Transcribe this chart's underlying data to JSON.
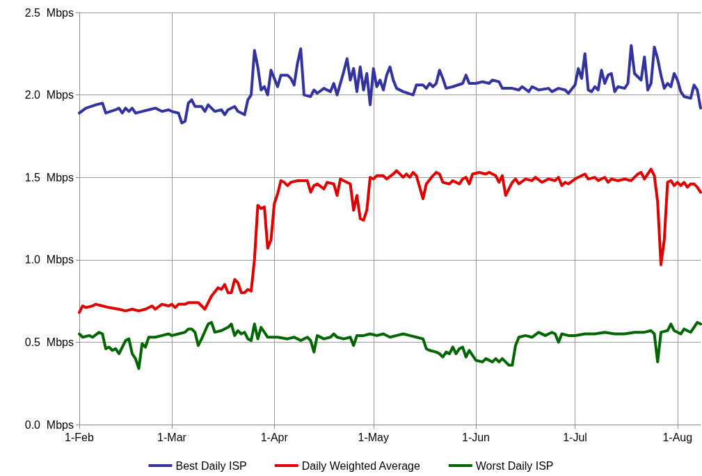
{
  "chart_data": {
    "type": "line",
    "legend": "bottom",
    "grid": true,
    "line_style": "solid",
    "marker": "none",
    "xlim": [
      "--02-01",
      "--08-08"
    ],
    "xticks": [
      {
        "value": "--02-01",
        "label": "1-Feb"
      },
      {
        "value": "--03-01",
        "label": "1-Mar"
      },
      {
        "value": "--04-01",
        "label": "1-Apr"
      },
      {
        "value": "--05-01",
        "label": "1-May"
      },
      {
        "value": "--06-01",
        "label": "1-Jun"
      },
      {
        "value": "--07-01",
        "label": "1-Jul"
      },
      {
        "value": "--08-01",
        "label": "1-Aug"
      }
    ],
    "ylim": [
      0,
      2.5
    ],
    "yticks": [
      {
        "value": 0,
        "label": "0.0  Mbps"
      },
      {
        "value": 0.5,
        "label": "0.5  Mbps"
      },
      {
        "value": 1,
        "label": "1.0  Mbps"
      },
      {
        "value": 1.5,
        "label": "1.5  Mbps"
      },
      {
        "value": 2,
        "label": "2.0  Mbps"
      },
      {
        "value": 2.5,
        "label": "2.5  Mbps"
      }
    ],
    "series": [
      {
        "name": "Best Daily ISP",
        "color": "#3333a0",
        "x": [
          "--02-01",
          "--02-03",
          "--02-06",
          "--02-08",
          "--02-09",
          "--02-12",
          "--02-13",
          "--02-14",
          "--02-15",
          "--02-16",
          "--02-17",
          "--02-18",
          "--02-20",
          "--02-22",
          "--02-24",
          "--02-26",
          "--02-28",
          "--03-01",
          "--03-03",
          "--03-04",
          "--03-05",
          "--03-06",
          "--03-07",
          "--03-08",
          "--03-10",
          "--03-11",
          "--03-12",
          "--03-14",
          "--03-16",
          "--03-17",
          "--03-18",
          "--03-20",
          "--03-21",
          "--03-23",
          "--03-24",
          "--03-25",
          "--03-26",
          "--03-27",
          "--03-28",
          "--03-29",
          "--03-30",
          "--03-31",
          "--04-02",
          "--04-03",
          "--04-05",
          "--04-06",
          "--04-07",
          "--04-08",
          "--04-09",
          "--04-10",
          "--04-12",
          "--04-13",
          "--04-14",
          "--04-16",
          "--04-18",
          "--04-19",
          "--04-20",
          "--04-22",
          "--04-23",
          "--04-24",
          "--04-25",
          "--04-26",
          "--04-27",
          "--04-28",
          "--04-29",
          "--04-30",
          "--05-01",
          "--05-02",
          "--05-03",
          "--05-04",
          "--05-05",
          "--05-06",
          "--05-07",
          "--05-08",
          "--05-10",
          "--05-13",
          "--05-14",
          "--05-16",
          "--05-17",
          "--05-18",
          "--05-19",
          "--05-20",
          "--05-21",
          "--05-22",
          "--05-23",
          "--05-25",
          "--05-28",
          "--05-29",
          "--05-30",
          "--06-01",
          "--06-03",
          "--06-05",
          "--06-06",
          "--06-08",
          "--06-09",
          "--06-12",
          "--06-14",
          "--06-15",
          "--06-17",
          "--06-18",
          "--06-20",
          "--06-23",
          "--06-24",
          "--06-26",
          "--06-28",
          "--06-29",
          "--07-01",
          "--07-02",
          "--07-03",
          "--07-04",
          "--07-05",
          "--07-06",
          "--07-07",
          "--07-08",
          "--07-09",
          "--07-10",
          "--07-11",
          "--07-12",
          "--07-13",
          "--07-14",
          "--07-16",
          "--07-17",
          "--07-18",
          "--07-19",
          "--07-20",
          "--07-21",
          "--07-22",
          "--07-23",
          "--07-24",
          "--07-25",
          "--07-26",
          "--07-27",
          "--07-28",
          "--07-29",
          "--07-30",
          "--07-31",
          "--08-01",
          "--08-02",
          "--08-03",
          "--08-05",
          "--08-06",
          "--08-07",
          "--08-08"
        ],
        "values": [
          1.89,
          1.92,
          1.94,
          1.95,
          1.89,
          1.91,
          1.92,
          1.89,
          1.92,
          1.9,
          1.92,
          1.89,
          1.9,
          1.91,
          1.92,
          1.9,
          1.91,
          1.9,
          1.89,
          1.83,
          1.84,
          1.95,
          1.97,
          1.93,
          1.93,
          1.9,
          1.94,
          1.9,
          1.91,
          1.88,
          1.91,
          1.93,
          1.9,
          1.88,
          1.97,
          2.0,
          2.27,
          2.17,
          2.03,
          2.05,
          2.0,
          2.15,
          2.05,
          2.12,
          2.12,
          2.1,
          2.06,
          2.19,
          2.28,
          2.0,
          1.99,
          2.03,
          2.01,
          2.04,
          2.02,
          2.07,
          2.0,
          2.14,
          2.22,
          2.09,
          2.16,
          2.02,
          2.17,
          2.03,
          2.13,
          1.94,
          2.16,
          2.05,
          2.09,
          2.03,
          2.12,
          2.17,
          2.09,
          2.04,
          2.02,
          2.0,
          2.06,
          2.06,
          2.04,
          2.07,
          2.05,
          2.07,
          2.15,
          2.1,
          2.04,
          2.05,
          2.07,
          2.12,
          2.07,
          2.07,
          2.08,
          2.07,
          2.09,
          2.08,
          2.04,
          2.04,
          2.03,
          2.05,
          2.02,
          2.05,
          2.03,
          2.04,
          2.02,
          2.04,
          2.03,
          2.01,
          2.06,
          2.16,
          2.1,
          2.25,
          2.03,
          2.02,
          2.05,
          2.03,
          2.15,
          2.07,
          2.12,
          2.13,
          2.02,
          2.05,
          2.04,
          2.07,
          2.3,
          2.13,
          2.11,
          2.09,
          2.23,
          2.03,
          2.07,
          2.29,
          2.22,
          2.12,
          2.04,
          2.07,
          2.05,
          2.13,
          2.09,
          2.02,
          1.99,
          1.98,
          2.06,
          2.03,
          1.92
        ]
      },
      {
        "name": "Daily Weighted Average",
        "color": "#e00000",
        "x": [
          "--02-01",
          "--02-02",
          "--02-03",
          "--02-05",
          "--02-06",
          "--02-08",
          "--02-10",
          "--02-13",
          "--02-15",
          "--02-17",
          "--02-19",
          "--02-21",
          "--02-23",
          "--02-24",
          "--02-26",
          "--02-28",
          "--03-01",
          "--03-02",
          "--03-03",
          "--03-05",
          "--03-06",
          "--03-09",
          "--03-10",
          "--03-11",
          "--03-13",
          "--03-15",
          "--03-16",
          "--03-17",
          "--03-18",
          "--03-19",
          "--03-20",
          "--03-21",
          "--03-22",
          "--03-23",
          "--03-24",
          "--03-25",
          "--03-26",
          "--03-27",
          "--03-28",
          "--03-29",
          "--03-30",
          "--03-31",
          "--04-01",
          "--04-02",
          "--04-03",
          "--04-04",
          "--04-05",
          "--04-06",
          "--04-08",
          "--04-11",
          "--04-12",
          "--04-13",
          "--04-14",
          "--04-16",
          "--04-17",
          "--04-19",
          "--04-20",
          "--04-21",
          "--04-22",
          "--04-24",
          "--04-25",
          "--04-26",
          "--04-27",
          "--04-28",
          "--04-29",
          "--04-30",
          "--05-01",
          "--05-02",
          "--05-04",
          "--05-05",
          "--05-07",
          "--05-08",
          "--05-09",
          "--05-10",
          "--05-11",
          "--05-12",
          "--05-13",
          "--05-14",
          "--05-16",
          "--05-17",
          "--05-19",
          "--05-20",
          "--05-21",
          "--05-22",
          "--05-24",
          "--05-25",
          "--05-27",
          "--05-28",
          "--05-29",
          "--05-30",
          "--05-31",
          "--06-02",
          "--06-04",
          "--06-05",
          "--06-07",
          "--06-08",
          "--06-09",
          "--06-10",
          "--06-12",
          "--06-13",
          "--06-14",
          "--06-16",
          "--06-18",
          "--06-19",
          "--06-21",
          "--06-23",
          "--06-25",
          "--06-26",
          "--06-27",
          "--06-28",
          "--06-29",
          "--07-01",
          "--07-03",
          "--07-04",
          "--07-05",
          "--07-07",
          "--07-08",
          "--07-10",
          "--07-11",
          "--07-12",
          "--07-14",
          "--07-16",
          "--07-18",
          "--07-20",
          "--07-21",
          "--07-22",
          "--07-23",
          "--07-24",
          "--07-25",
          "--07-26",
          "--07-27",
          "--07-28",
          "--07-29",
          "--07-30",
          "--07-31",
          "--08-01",
          "--08-02",
          "--08-03",
          "--08-04",
          "--08-05",
          "--08-06",
          "--08-07",
          "--08-08"
        ],
        "values": [
          0.68,
          0.72,
          0.71,
          0.72,
          0.73,
          0.72,
          0.71,
          0.7,
          0.69,
          0.7,
          0.69,
          0.7,
          0.72,
          0.7,
          0.73,
          0.72,
          0.73,
          0.71,
          0.73,
          0.73,
          0.74,
          0.74,
          0.72,
          0.7,
          0.78,
          0.83,
          0.82,
          0.85,
          0.8,
          0.8,
          0.88,
          0.86,
          0.8,
          0.8,
          0.82,
          0.81,
          1.0,
          1.33,
          1.31,
          1.32,
          1.07,
          1.12,
          1.34,
          1.4,
          1.48,
          1.47,
          1.45,
          1.47,
          1.48,
          1.48,
          1.41,
          1.45,
          1.46,
          1.43,
          1.47,
          1.46,
          1.39,
          1.49,
          1.48,
          1.46,
          1.3,
          1.39,
          1.25,
          1.24,
          1.3,
          1.5,
          1.49,
          1.51,
          1.51,
          1.49,
          1.52,
          1.54,
          1.52,
          1.5,
          1.52,
          1.5,
          1.53,
          1.51,
          1.37,
          1.46,
          1.51,
          1.53,
          1.52,
          1.47,
          1.46,
          1.48,
          1.46,
          1.49,
          1.5,
          1.46,
          1.52,
          1.53,
          1.52,
          1.53,
          1.51,
          1.47,
          1.51,
          1.39,
          1.47,
          1.49,
          1.46,
          1.49,
          1.48,
          1.5,
          1.47,
          1.49,
          1.48,
          1.5,
          1.45,
          1.47,
          1.46,
          1.49,
          1.51,
          1.52,
          1.49,
          1.5,
          1.48,
          1.5,
          1.47,
          1.49,
          1.48,
          1.49,
          1.48,
          1.52,
          1.53,
          1.49,
          1.52,
          1.55,
          1.51,
          1.35,
          0.97,
          1.12,
          1.47,
          1.48,
          1.45,
          1.47,
          1.45,
          1.47,
          1.44,
          1.46,
          1.46,
          1.44,
          1.41
        ]
      },
      {
        "name": "Worst Daily ISP",
        "color": "#006600",
        "x": [
          "--02-01",
          "--02-02",
          "--02-04",
          "--02-05",
          "--02-07",
          "--02-08",
          "--02-09",
          "--02-10",
          "--02-11",
          "--02-12",
          "--02-13",
          "--02-15",
          "--02-16",
          "--02-17",
          "--02-18",
          "--02-19",
          "--02-20",
          "--02-21",
          "--02-22",
          "--02-24",
          "--02-26",
          "--02-28",
          "--03-01",
          "--03-03",
          "--03-05",
          "--03-06",
          "--03-07",
          "--03-08",
          "--03-09",
          "--03-10",
          "--03-12",
          "--03-13",
          "--03-14",
          "--03-16",
          "--03-18",
          "--03-19",
          "--03-20",
          "--03-21",
          "--03-22",
          "--03-23",
          "--03-24",
          "--03-25",
          "--03-26",
          "--03-27",
          "--03-28",
          "--03-29",
          "--03-30",
          "--04-02",
          "--04-05",
          "--04-07",
          "--04-09",
          "--04-11",
          "--04-12",
          "--04-13",
          "--04-14",
          "--04-16",
          "--04-18",
          "--04-19",
          "--04-20",
          "--04-22",
          "--04-24",
          "--04-25",
          "--04-26",
          "--04-28",
          "--04-30",
          "--05-02",
          "--05-04",
          "--05-06",
          "--05-08",
          "--05-10",
          "--05-12",
          "--05-14",
          "--05-16",
          "--05-17",
          "--05-18",
          "--05-20",
          "--05-21",
          "--05-22",
          "--05-23",
          "--05-24",
          "--05-25",
          "--05-26",
          "--05-27",
          "--05-28",
          "--05-29",
          "--05-30",
          "--05-31",
          "--06-01",
          "--06-03",
          "--06-04",
          "--06-06",
          "--06-07",
          "--06-08",
          "--06-09",
          "--06-11",
          "--06-12",
          "--06-13",
          "--06-14",
          "--06-16",
          "--06-18",
          "--06-20",
          "--06-22",
          "--06-24",
          "--06-25",
          "--06-26",
          "--06-27",
          "--06-29",
          "--07-01",
          "--07-04",
          "--07-07",
          "--07-10",
          "--07-13",
          "--07-16",
          "--07-19",
          "--07-22",
          "--07-24",
          "--07-25",
          "--07-26",
          "--07-27",
          "--07-29",
          "--07-30",
          "--07-31",
          "--08-02",
          "--08-03",
          "--08-05",
          "--08-06",
          "--08-07",
          "--08-08"
        ],
        "values": [
          0.55,
          0.53,
          0.54,
          0.53,
          0.56,
          0.55,
          0.46,
          0.47,
          0.45,
          0.46,
          0.43,
          0.51,
          0.52,
          0.43,
          0.4,
          0.34,
          0.49,
          0.47,
          0.53,
          0.53,
          0.54,
          0.55,
          0.54,
          0.55,
          0.56,
          0.58,
          0.58,
          0.56,
          0.48,
          0.52,
          0.61,
          0.62,
          0.56,
          0.57,
          0.59,
          0.61,
          0.54,
          0.57,
          0.55,
          0.56,
          0.52,
          0.51,
          0.61,
          0.52,
          0.59,
          0.56,
          0.53,
          0.53,
          0.52,
          0.53,
          0.51,
          0.53,
          0.51,
          0.44,
          0.54,
          0.52,
          0.53,
          0.55,
          0.53,
          0.52,
          0.53,
          0.48,
          0.54,
          0.54,
          0.55,
          0.54,
          0.55,
          0.53,
          0.54,
          0.55,
          0.54,
          0.53,
          0.52,
          0.46,
          0.45,
          0.44,
          0.43,
          0.41,
          0.44,
          0.43,
          0.47,
          0.43,
          0.46,
          0.47,
          0.41,
          0.45,
          0.42,
          0.39,
          0.38,
          0.4,
          0.38,
          0.4,
          0.38,
          0.4,
          0.36,
          0.36,
          0.48,
          0.53,
          0.54,
          0.53,
          0.56,
          0.54,
          0.56,
          0.55,
          0.5,
          0.55,
          0.54,
          0.54,
          0.55,
          0.55,
          0.56,
          0.55,
          0.55,
          0.56,
          0.56,
          0.57,
          0.55,
          0.38,
          0.56,
          0.57,
          0.61,
          0.57,
          0.55,
          0.58,
          0.56,
          0.59,
          0.62,
          0.61
        ]
      }
    ]
  }
}
